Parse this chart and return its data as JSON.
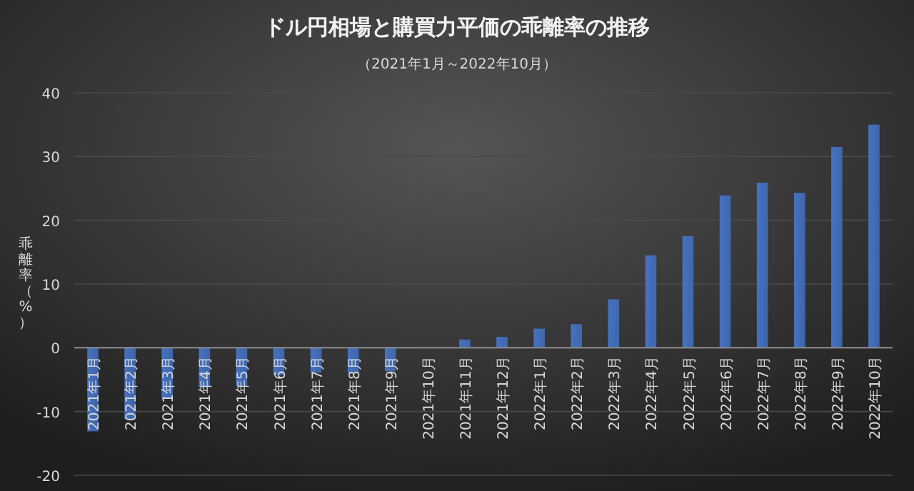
{
  "chart_data": {
    "type": "bar",
    "title": "ドル円相場と購買力平価の乖離率の推移",
    "subtitle": "（2021年1月～2022年10月）",
    "ylabel": "乖離率（%）",
    "categories": [
      "2021年1月",
      "2021年2月",
      "2021年3月",
      "2021年4月",
      "2021年5月",
      "2021年6月",
      "2021年7月",
      "2021年8月",
      "2021年9月",
      "2021年10月",
      "2021年11月",
      "2021年12月",
      "2022年1月",
      "2022年2月",
      "2022年3月",
      "2022年4月",
      "2022年5月",
      "2022年6月",
      "2022年7月",
      "2022年8月",
      "2022年9月",
      "2022年10月"
    ],
    "values": [
      -13.1,
      -11.2,
      -8.0,
      -6.2,
      -6.0,
      -4.3,
      -3.9,
      -4.0,
      -3.7,
      0,
      1.3,
      1.7,
      3.0,
      3.7,
      7.6,
      14.5,
      17.5,
      23.9,
      25.9,
      24.3,
      31.5,
      35.0
    ],
    "color": "#4472c4",
    "ylim": [
      -20,
      40
    ],
    "yticks": [
      -20,
      -10,
      0,
      10,
      20,
      30,
      40
    ],
    "grid": "y"
  }
}
